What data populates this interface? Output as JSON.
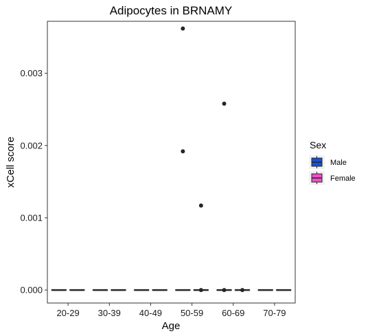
{
  "chart_data": {
    "type": "boxplot",
    "title": "Adipocytes in BRNAMY",
    "xlabel": "Age",
    "ylabel": "xCell score",
    "categories": [
      "20-29",
      "30-39",
      "40-49",
      "50-59",
      "60-69",
      "70-79"
    ],
    "yticks": [
      "0.000",
      "0.001",
      "0.002",
      "0.003"
    ],
    "ylim": [
      -0.00018,
      0.00372
    ],
    "grid": false,
    "legend": {
      "title": "Sex",
      "position": "right"
    },
    "series": [
      {
        "name": "Male",
        "color": "#1a4fd6",
        "boxes": [
          {
            "category": "20-29",
            "min": 0,
            "q1": 0,
            "median": 0,
            "q3": 0,
            "max": 0
          },
          {
            "category": "30-39",
            "min": 0,
            "q1": 0,
            "median": 0,
            "q3": 0,
            "max": 0
          },
          {
            "category": "40-49",
            "min": 0,
            "q1": 0,
            "median": 0,
            "q3": 0,
            "max": 0
          },
          {
            "category": "50-59",
            "min": 0,
            "q1": 0,
            "median": 0,
            "q3": 0,
            "max": 0
          },
          {
            "category": "60-69",
            "min": 0,
            "q1": 0,
            "median": 0,
            "q3": 0,
            "max": 0
          },
          {
            "category": "70-79",
            "min": 0,
            "q1": 0,
            "median": 0,
            "q3": 0,
            "max": 0
          }
        ],
        "outliers": [
          {
            "category": "50-59",
            "y": 0.00362
          },
          {
            "category": "50-59",
            "y": 0.00192
          },
          {
            "category": "60-69",
            "y": 0.00258
          },
          {
            "category": "60-69",
            "y": 0.0
          }
        ]
      },
      {
        "name": "Female",
        "color": "#f04fc8",
        "boxes": [
          {
            "category": "20-29",
            "min": 0,
            "q1": 0,
            "median": 0,
            "q3": 0,
            "max": 0
          },
          {
            "category": "30-39",
            "min": 0,
            "q1": 0,
            "median": 0,
            "q3": 0,
            "max": 0
          },
          {
            "category": "40-49",
            "min": 0,
            "q1": 0,
            "median": 0,
            "q3": 0,
            "max": 0
          },
          {
            "category": "50-59",
            "min": 0,
            "q1": 0,
            "median": 0,
            "q3": 0,
            "max": 0
          },
          {
            "category": "60-69",
            "min": 0,
            "q1": 0,
            "median": 0,
            "q3": 0,
            "max": 0
          },
          {
            "category": "70-79",
            "min": 0,
            "q1": 0,
            "median": 0,
            "q3": 0,
            "max": 0
          }
        ],
        "outliers": [
          {
            "category": "50-59",
            "y": 0.00117
          },
          {
            "category": "50-59",
            "y": 0.0
          },
          {
            "category": "60-69",
            "y": 0.0
          }
        ]
      }
    ]
  }
}
